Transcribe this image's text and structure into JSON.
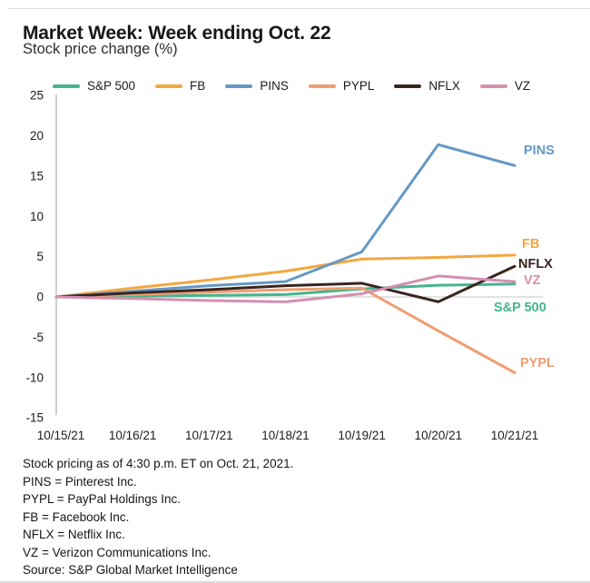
{
  "header": {
    "title": "Market Week: Week ending Oct. 22",
    "subtitle": "Stock price change (%)"
  },
  "chart_data": {
    "type": "line",
    "title": "Market Week: Week ending Oct. 22",
    "ylabel": "Stock price change (%)",
    "xlabel": "",
    "x": [
      "10/15/21",
      "10/16/21",
      "10/17/21",
      "10/18/21",
      "10/19/21",
      "10/20/21",
      "10/21/21"
    ],
    "yticks": [
      25,
      20,
      15,
      10,
      5,
      0,
      -5,
      -10,
      -15
    ],
    "ylim": [
      -15,
      25
    ],
    "grid": "zero-line-only",
    "legend_position": "top",
    "axis_color": "#bdbdbd",
    "zero_line_color": "#d0d0d0",
    "series": [
      {
        "name": "S&P 500",
        "label": "S&P 500",
        "color": "#45b58e",
        "values": [
          0,
          0.1,
          0.2,
          0.3,
          1.0,
          1.45,
          1.6
        ]
      },
      {
        "name": "FB",
        "label": "FB",
        "color": "#f3a73f",
        "values": [
          0,
          1.1,
          2.1,
          3.2,
          4.7,
          4.9,
          5.2
        ]
      },
      {
        "name": "PINS",
        "label": "PINS",
        "color": "#6598c5",
        "values": [
          0,
          0.7,
          1.4,
          1.9,
          5.6,
          18.9,
          16.3
        ]
      },
      {
        "name": "PYPL",
        "label": "PYPL",
        "color": "#ef9d72",
        "values": [
          0,
          0.3,
          0.6,
          0.9,
          1.1,
          -4.2,
          -9.4
        ]
      },
      {
        "name": "NFLX",
        "label": "NFLX",
        "color": "#3a241e",
        "values": [
          0,
          0.5,
          0.9,
          1.4,
          1.7,
          -0.6,
          3.8
        ]
      },
      {
        "name": "VZ",
        "label": "VZ",
        "color": "#d58fb0",
        "values": [
          0,
          -0.2,
          -0.45,
          -0.6,
          0.4,
          2.6,
          1.9
        ]
      }
    ]
  },
  "footnotes": [
    "Stock pricing as of 4:30 p.m. ET on Oct. 21, 2021.",
    "PINS = Pinterest Inc.",
    "PYPL = PayPal Holdings Inc.",
    "FB = Facebook Inc.",
    "NFLX = Netflix Inc.",
    "VZ = Verizon Communications Inc.",
    "Source: S&P Global Market Intelligence"
  ]
}
